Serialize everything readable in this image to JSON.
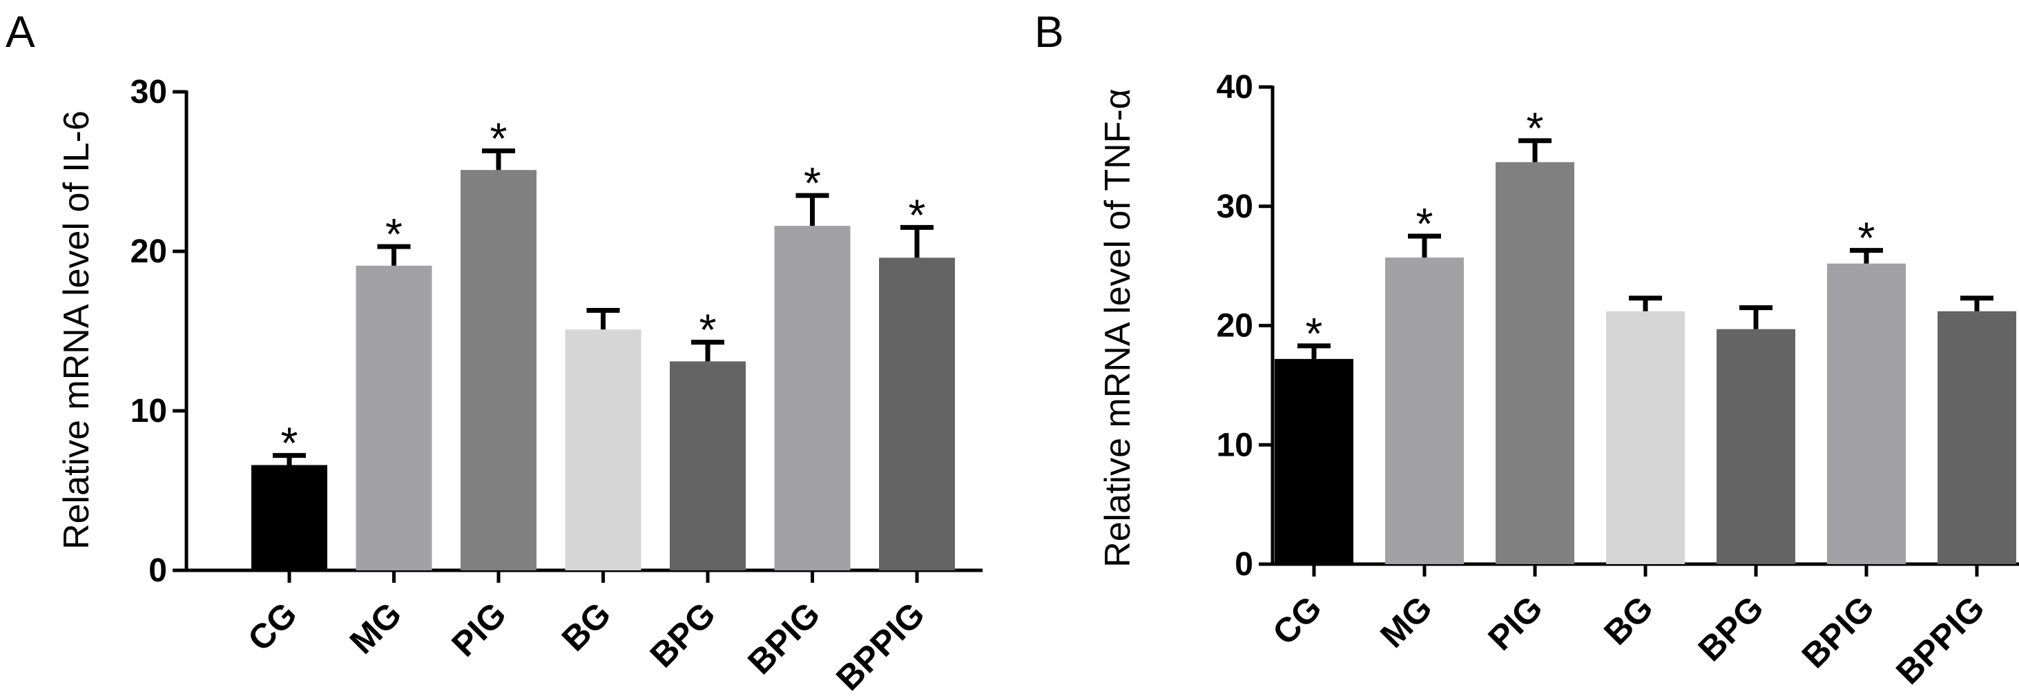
{
  "chart_data": [
    {
      "type": "bar",
      "panel_label": "A",
      "title": "",
      "xlabel": "",
      "ylabel": "Relative mRNA level of IL-6",
      "ylim": [
        0,
        30
      ],
      "yticks": [
        0,
        10,
        20,
        30
      ],
      "categories": [
        "CG",
        "MG",
        "PIG",
        "BG",
        "BPG",
        "BPIG",
        "BPPIG"
      ],
      "values": [
        6.6,
        19.1,
        25.1,
        15.1,
        13.1,
        21.6,
        19.6
      ],
      "errors": [
        0.6,
        1.2,
        1.2,
        1.2,
        1.2,
        1.9,
        1.9
      ],
      "significant": [
        true,
        true,
        true,
        false,
        true,
        true,
        true
      ],
      "significance_marker": "*",
      "colors": [
        "#000000",
        "#a2a2a6",
        "#808080",
        "#d6d6d6",
        "#646464",
        "#a2a2a6",
        "#646464"
      ],
      "grid": false
    },
    {
      "type": "bar",
      "panel_label": "B",
      "title": "",
      "xlabel": "",
      "ylabel": "Relative mRNA level of TNF-α",
      "ylim": [
        0,
        40
      ],
      "yticks": [
        0,
        10,
        20,
        30,
        40
      ],
      "categories": [
        "CG",
        "MG",
        "PIG",
        "BG",
        "BPG",
        "BPIG",
        "BPPIG"
      ],
      "values": [
        17.2,
        25.7,
        33.7,
        21.2,
        19.7,
        25.2,
        21.2
      ],
      "errors": [
        1.1,
        1.8,
        1.8,
        1.1,
        1.8,
        1.1,
        1.1
      ],
      "significant": [
        true,
        true,
        true,
        false,
        false,
        true,
        false
      ],
      "significance_marker": "*",
      "colors": [
        "#000000",
        "#a2a2a6",
        "#808080",
        "#d6d6d6",
        "#646464",
        "#a2a2a6",
        "#646464"
      ],
      "grid": false
    }
  ]
}
